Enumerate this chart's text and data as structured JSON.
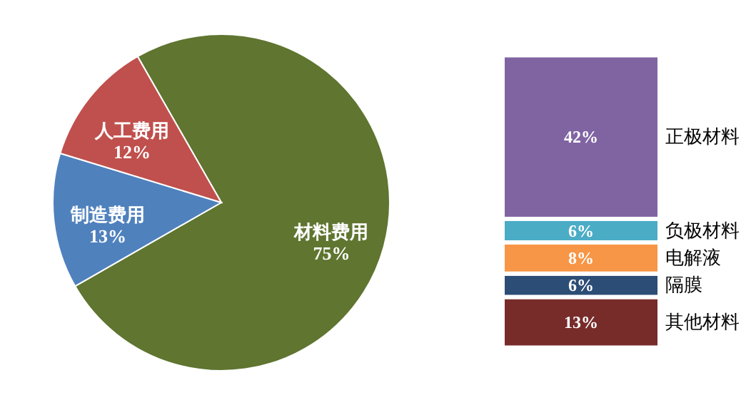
{
  "chart_data": [
    {
      "type": "pie",
      "categories": [
        "材料费用",
        "制造费用",
        "人工费用"
      ],
      "values": [
        75,
        13,
        12
      ],
      "colors": [
        "#5f7530",
        "#4f81bd",
        "#c0504d"
      ],
      "value_labels": [
        "75%",
        "13%",
        "12%"
      ]
    },
    {
      "type": "bar",
      "stacked": true,
      "categories": [
        null
      ],
      "series": [
        {
          "name": "其他材料",
          "color": "#772c2a",
          "values": [
            13
          ],
          "value_labels": [
            "13%"
          ]
        },
        {
          "name": "隔膜",
          "color": "#2c4d75",
          "values": [
            6
          ],
          "value_labels": [
            "6%"
          ]
        },
        {
          "name": "电解液",
          "color": "#f79646",
          "values": [
            8
          ],
          "value_labels": [
            "8%"
          ]
        },
        {
          "name": "负极材料",
          "color": "#4bacc6",
          "values": [
            6
          ],
          "value_labels": [
            "6%"
          ]
        },
        {
          "name": "正极材料",
          "color": "#8064a2",
          "values": [
            42
          ],
          "value_labels": [
            "42%"
          ]
        }
      ]
    }
  ]
}
